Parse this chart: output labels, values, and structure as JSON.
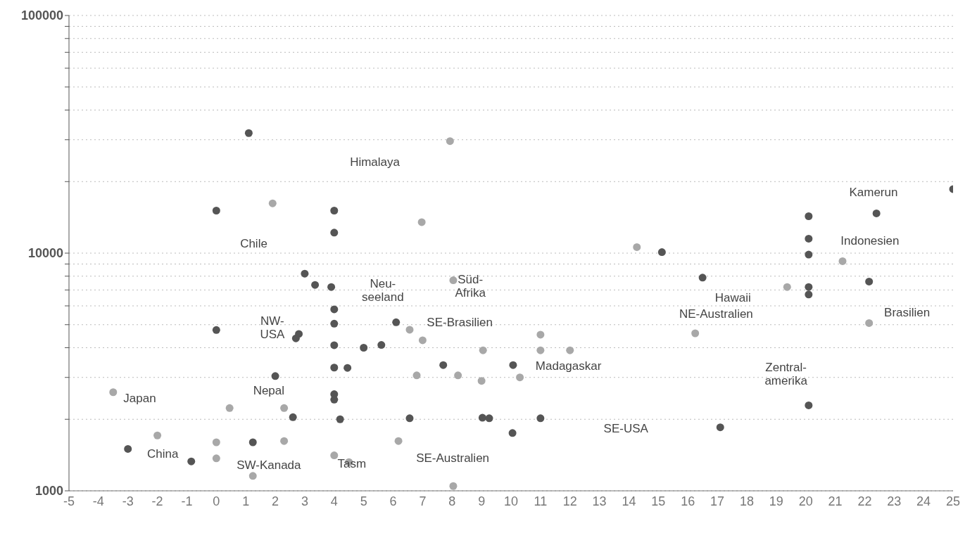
{
  "chart_data": {
    "type": "scatter",
    "log": "y",
    "xlim": [
      -5,
      25
    ],
    "xticks": [
      -5,
      -4,
      -3,
      -2,
      -1,
      0,
      1,
      2,
      3,
      4,
      5,
      6,
      7,
      8,
      9,
      10,
      11,
      12,
      13,
      14,
      15,
      16,
      17,
      18,
      19,
      20,
      21,
      22,
      23,
      24,
      25
    ],
    "ylim": [
      1000,
      100000
    ],
    "yticks": [
      1000,
      {
        "value": 2000,
        "label": null
      },
      {
        "value": 3000,
        "label": null
      },
      {
        "value": 4000,
        "label": null
      },
      {
        "value": 5000,
        "label": null
      },
      {
        "value": 6000,
        "label": null
      },
      {
        "value": 7000,
        "label": null
      },
      {
        "value": 8000,
        "label": null
      },
      {
        "value": 9000,
        "label": null
      },
      10000,
      {
        "value": 20000,
        "label": null
      },
      {
        "value": 30000,
        "label": null
      },
      {
        "value": 40000,
        "label": null
      },
      {
        "value": 50000,
        "label": null
      },
      {
        "value": 60000,
        "label": null
      },
      {
        "value": 70000,
        "label": null
      },
      {
        "value": 80000,
        "label": null
      },
      {
        "value": 90000,
        "label": null
      },
      100000
    ],
    "grid": "y",
    "marker": "circle",
    "series": [
      {
        "color": "#555555",
        "x": [
          1.1,
          0,
          4,
          4,
          3,
          3.35,
          3.9,
          4,
          4,
          0,
          2.8,
          2.7,
          4,
          4,
          4.45,
          2,
          4,
          4,
          4.2,
          2.6,
          5,
          5.6,
          6.1,
          7.7,
          1.24,
          -3,
          -0.85,
          10.07,
          6.56,
          9.03,
          9.26,
          11,
          10.05,
          25,
          20.1,
          22.4,
          20.1,
          20.1,
          22.15,
          20.1,
          20.1,
          20.1,
          15.12,
          16.5,
          17.1
        ],
        "values": [
          32000,
          15100,
          15100,
          12200,
          8200,
          7350,
          7200,
          5800,
          5050,
          4750,
          4570,
          4380,
          4100,
          3300,
          3290,
          3040,
          2550,
          2420,
          2000,
          2040,
          4000,
          4110,
          5120,
          3380,
          1600,
          1500,
          1330,
          3380,
          2020,
          2030,
          2020,
          2020,
          1750,
          18600,
          14300,
          14700,
          11500,
          9860,
          7590,
          7200,
          6700,
          2290,
          10100,
          7890,
          1850
        ]
      },
      {
        "color": "#a8a8a8",
        "x": [
          7.93,
          1.91,
          6.97,
          -3.5,
          0.45,
          -2,
          0,
          0,
          1.24,
          2.3,
          2.3,
          4,
          4.5,
          8.04,
          6.56,
          7,
          8.2,
          9.05,
          9,
          10.3,
          11,
          11,
          12,
          6.8,
          6.18,
          8.04,
          21.25,
          19.37,
          22.15,
          14.27,
          16.25
        ],
        "values": [
          29600,
          16200,
          13500,
          2600,
          2230,
          1710,
          1600,
          1370,
          1155,
          1620,
          2230,
          1410,
          1320,
          7690,
          4760,
          4300,
          3060,
          3900,
          2900,
          3000,
          4540,
          3900,
          3900,
          3060,
          1620,
          1047,
          9250,
          7200,
          5080,
          10600,
          4600
        ]
      }
    ],
    "annotations": [
      "Himalaya",
      "Chile",
      "Neu-\nseeland",
      "NW-\nUSA",
      "Nepal",
      "Japan",
      "China",
      "SW-Kanada",
      "Tasm",
      "SE-Australien",
      "SE-Brasilien",
      "Süd-\nAfrika",
      "Madagaskar",
      "SE-USA",
      "Hawaii",
      "NE-Australien",
      "Zentral-\namerika",
      "Kamerun",
      "Indonesien",
      "Brasilien"
    ]
  }
}
